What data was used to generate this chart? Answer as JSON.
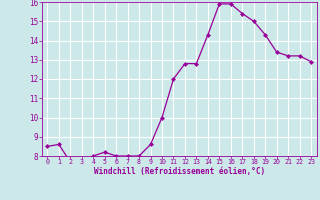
{
  "x": [
    0,
    1,
    2,
    3,
    4,
    5,
    6,
    7,
    8,
    9,
    10,
    11,
    12,
    13,
    14,
    15,
    16,
    17,
    18,
    19,
    20,
    21,
    22,
    23
  ],
  "y": [
    8.5,
    8.6,
    7.7,
    7.7,
    8.0,
    8.2,
    8.0,
    8.0,
    8.0,
    8.6,
    10.0,
    12.0,
    12.8,
    12.8,
    14.3,
    15.9,
    15.9,
    15.4,
    15.0,
    14.3,
    13.4,
    13.2,
    13.2,
    12.9
  ],
  "line_color": "#990099",
  "marker": "D",
  "marker_size": 2.2,
  "bg_color": "#cce8e8",
  "grid_color": "#ffffff",
  "xlabel": "Windchill (Refroidissement éolien,°C)",
  "xlabel_color": "#990099",
  "tick_color": "#990099",
  "label_color": "#990099",
  "ylim": [
    8,
    16
  ],
  "xlim": [
    -0.5,
    23.5
  ],
  "yticks": [
    8,
    9,
    10,
    11,
    12,
    13,
    14,
    15,
    16
  ],
  "xticks": [
    0,
    1,
    2,
    3,
    4,
    5,
    6,
    7,
    8,
    9,
    10,
    11,
    12,
    13,
    14,
    15,
    16,
    17,
    18,
    19,
    20,
    21,
    22,
    23
  ]
}
